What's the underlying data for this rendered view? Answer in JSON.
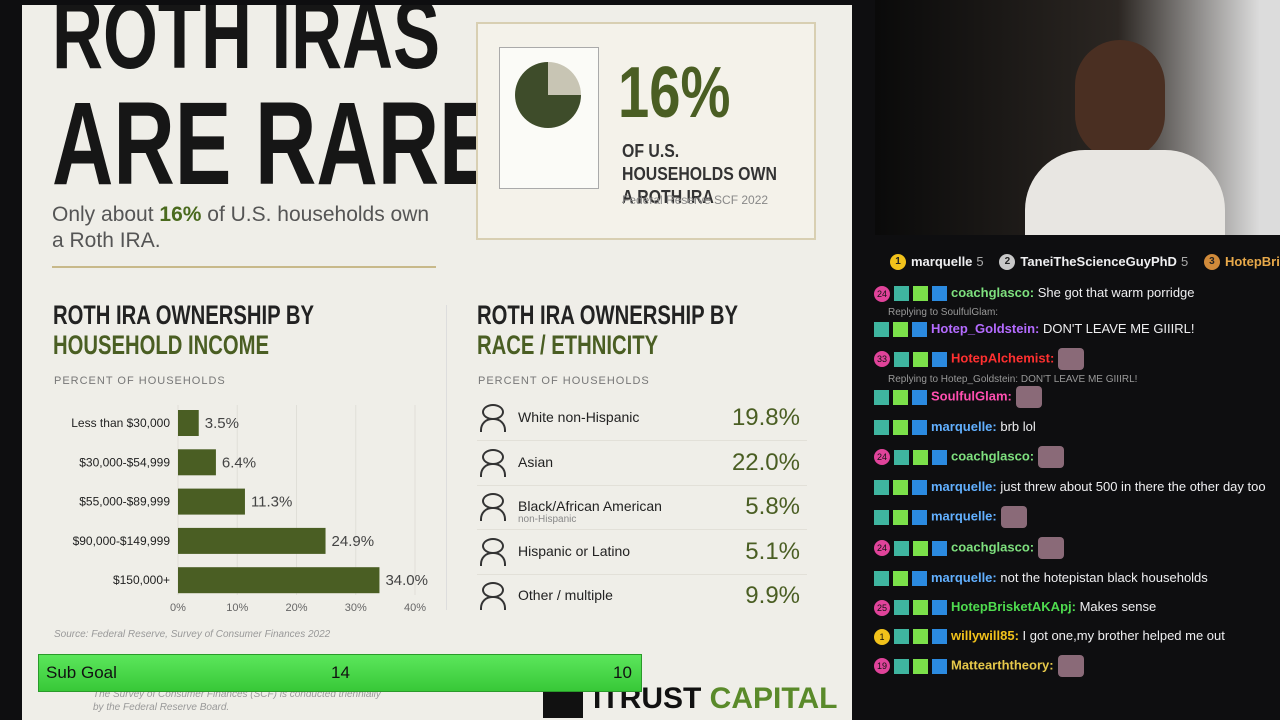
{
  "infographic": {
    "title_line1": "ROTH IRAS",
    "title_line2": "ARE RARE.",
    "subtitle_pre": "Only about ",
    "subtitle_pct": "16%",
    "subtitle_post": " of U.S. households own a Roth IRA.",
    "stat": {
      "value": "16%",
      "text": "OF U.S. HOUSEHOLDS OWN A ROTH IRA",
      "source": "Federal Reserve SCF 2022"
    },
    "race": {
      "title_line1": "ROTH IRA OWNERSHIP BY",
      "title_line2": "RACE / ETHNICITY",
      "axis_label": "PERCENT OF HOUSEHOLDS",
      "rows": [
        {
          "label": "White non-Hispanic",
          "value": "19.8%"
        },
        {
          "label": "Asian",
          "value": "22.0%"
        },
        {
          "label": "Black/African American",
          "sublabel": "non-Hispanic",
          "value": "5.8%"
        },
        {
          "label": "Hispanic or Latino",
          "value": "5.1%"
        },
        {
          "label": "Other / multiple",
          "value": "9.9%"
        }
      ]
    },
    "footnote": "The Survey of Consumer Finances (SCF) is conducted triennially by the Federal Reserve Board.",
    "logo_a": "ITRUST",
    "logo_b": "CAPITAL"
  },
  "chart_data": {
    "type": "hbar",
    "title_line1": "ROTH IRA OWNERSHIP BY",
    "title_line2": "HOUSEHOLD INCOME",
    "axis_label": "PERCENT OF HOUSEHOLDS",
    "categories": [
      "Less than $30,000",
      "$30,000-$54,999",
      "$55,000-$89,999",
      "$90,000-$149,999",
      "$150,000+"
    ],
    "values": [
      3.5,
      6.4,
      11.3,
      24.9,
      34.0
    ],
    "value_labels": [
      "3.5%",
      "6.4%",
      "11.3%",
      "24.9%",
      "34.0%"
    ],
    "color": "#4a5e23",
    "xlim": [
      0,
      40
    ],
    "xticks": [
      {
        "value": 0,
        "label": "0%"
      },
      {
        "value": 10,
        "label": "10%"
      },
      {
        "value": 20,
        "label": "20%"
      },
      {
        "value": 30,
        "label": "30%"
      },
      {
        "value": 40,
        "label": "40%"
      }
    ],
    "source": "Source: Federal Reserve, Survey of Consumer Finances 2022"
  },
  "sub_goal": {
    "label": "Sub Goal",
    "current": "14",
    "target": "10"
  },
  "leaderboard": [
    {
      "rank": "1",
      "name": "marquelle",
      "count": "5"
    },
    {
      "rank": "2",
      "name": "TaneiTheScienceGuyPhD",
      "count": "5"
    },
    {
      "rank": "3",
      "name": "HotepBri"
    }
  ],
  "chat": [
    {
      "badge": "24",
      "name": "coachglasco:",
      "color": "#7ee07e",
      "text": " She got that warm porridge"
    },
    {
      "reply": "Replying to SoulfulGlam:",
      "name": "Hotep_Goldstein:",
      "color": "#b46bff",
      "text": " DON'T LEAVE ME GIIIRL!"
    },
    {
      "badge": "33",
      "name": "HotepAlchemist:",
      "color": "#ff3030"
    },
    {
      "reply": "Replying to Hotep_Goldstein: DON'T LEAVE ME GIIIRL!",
      "name": "SoulfulGlam:",
      "color": "#ff4fb0"
    },
    {
      "name": "marquelle:",
      "color": "#62b0ff",
      "text": " brb lol"
    },
    {
      "badge": "24",
      "name": "coachglasco:",
      "color": "#7ee07e"
    },
    {
      "name": "marquelle:",
      "color": "#62b0ff",
      "text": " just threw about 500 in there the other day too"
    },
    {
      "name": "marquelle:",
      "color": "#62b0ff"
    },
    {
      "badge": "24",
      "name": "coachglasco:",
      "color": "#7ee07e"
    },
    {
      "name": "marquelle:",
      "color": "#62b0ff",
      "text": " not the hotepistan black households"
    },
    {
      "badge": "25",
      "name": "HotepBrisketAKApj:",
      "color": "#4fdc4f",
      "text": " Makes sense"
    },
    {
      "badge": "1",
      "name": "willywill85:",
      "color": "#f2c21b",
      "text": " I got one,my brother helped me out"
    },
    {
      "badge": "19",
      "name": "Mattearththeory:",
      "color": "#e6c84a"
    }
  ]
}
